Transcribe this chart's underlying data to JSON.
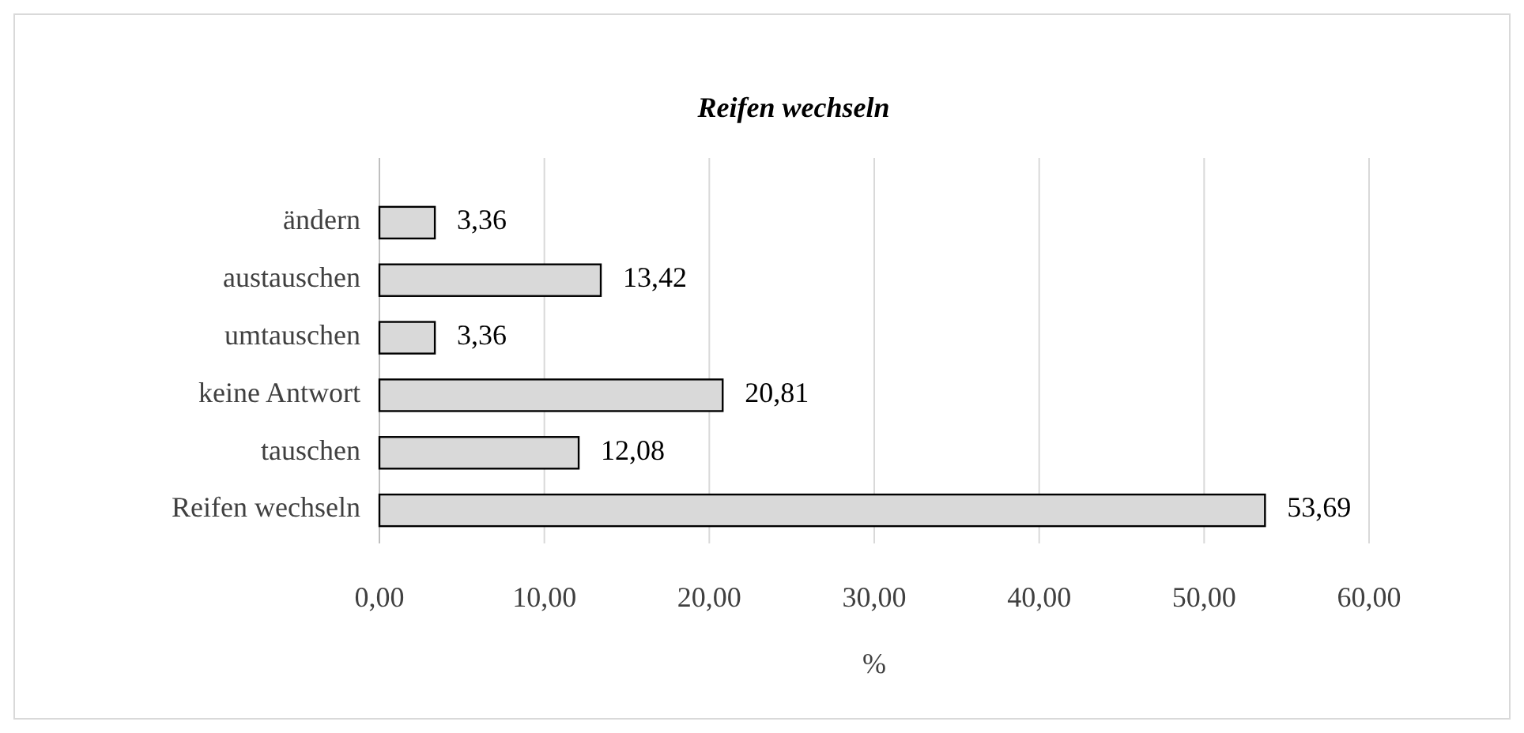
{
  "chart_data": {
    "type": "bar",
    "orientation": "horizontal",
    "title": "Reifen wechseln",
    "xlabel": "%",
    "categories": [
      "ändern",
      "austauschen",
      "umtauschen",
      "keine Antwort",
      "tauschen",
      "Reifen wechseln"
    ],
    "values": [
      3.36,
      13.42,
      3.36,
      20.81,
      12.08,
      53.69
    ],
    "value_labels": [
      "3,36",
      "13,42",
      "3,36",
      "20,81",
      "12,08",
      "53,69"
    ],
    "color": "#d9d9d9",
    "xlim": [
      0,
      60
    ],
    "xticks": [
      {
        "value": 0,
        "label": "0,00"
      },
      {
        "value": 10,
        "label": "10,00"
      },
      {
        "value": 20,
        "label": "20,00"
      },
      {
        "value": 30,
        "label": "30,00"
      },
      {
        "value": 40,
        "label": "40,00"
      },
      {
        "value": 50,
        "label": "50,00"
      },
      {
        "value": 60,
        "label": "60,00"
      }
    ],
    "grid": "x"
  }
}
